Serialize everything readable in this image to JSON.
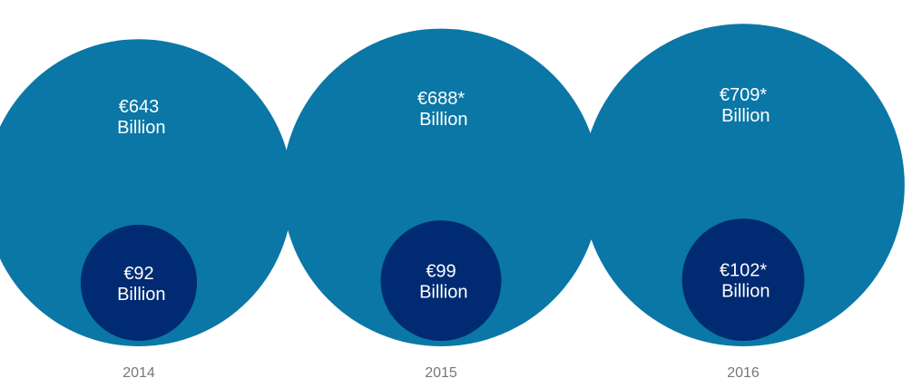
{
  "chart_data": {
    "type": "nested-bubble",
    "categories": [
      "2014",
      "2015",
      "2016"
    ],
    "series": [
      {
        "color": "#0a77a6",
        "values": [
          643,
          688,
          709
        ],
        "value_labels": [
          "€643 Billion",
          "€688* Billion",
          "€709* Billion"
        ]
      },
      {
        "color": "#002a72",
        "values": [
          92,
          99,
          102
        ],
        "value_labels": [
          "€92 Billion",
          "€99 Billion",
          "€102* Billion"
        ]
      }
    ]
  }
}
